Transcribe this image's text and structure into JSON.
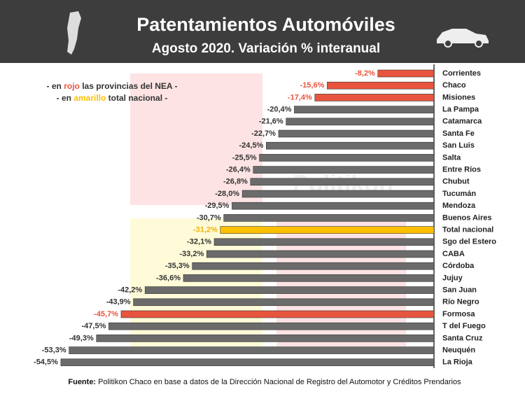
{
  "chart_data": {
    "type": "bar",
    "orientation": "horizontal",
    "title": "Patentamientos Automóviles",
    "subtitle": "Agosto 2020. Variación % interanual",
    "legend_lines": [
      [
        "- en ",
        "rojo",
        " las provincias del NEA -"
      ],
      [
        "- en ",
        "amarillo",
        " total nacional -"
      ]
    ],
    "legend_colors": [
      "#e8553e",
      "#ffc000"
    ],
    "watermark": "Politikon",
    "categories": [
      "Corrientes",
      "Chaco",
      "Misiones",
      "La Pampa",
      "Catamarca",
      "Santa Fe",
      "San Luis",
      "Salta",
      "Entre Ríos",
      "Chubut",
      "Tucumán",
      "Mendoza",
      "Buenos Aires",
      "Total nacional",
      "Sgo del Estero",
      "CABA",
      "Córdoba",
      "Jujuy",
      "San Juan",
      "Río Negro",
      "Formosa",
      "T del Fuego",
      "Santa Cruz",
      "Neuquén",
      "La Rioja"
    ],
    "values": [
      -8.2,
      -15.6,
      -17.4,
      -20.4,
      -21.6,
      -22.7,
      -24.5,
      -25.5,
      -26.4,
      -26.8,
      -28.0,
      -29.5,
      -30.7,
      -31.2,
      -32.1,
      -33.2,
      -35.3,
      -36.6,
      -42.2,
      -43.9,
      -45.7,
      -47.5,
      -49.3,
      -53.3,
      -54.5
    ],
    "value_labels": [
      "-8,2%",
      "-15,6%",
      "-17,4%",
      "-20,4%",
      "-21,6%",
      "-22,7%",
      "-24,5%",
      "-25,5%",
      "-26,4%",
      "-26,8%",
      "-28,0%",
      "-29,5%",
      "-30,7%",
      "-31,2%",
      "-32,1%",
      "-33,2%",
      "-35,3%",
      "-36,6%",
      "-42,2%",
      "-43,9%",
      "-45,7%",
      "-47,5%",
      "-49,3%",
      "-53,3%",
      "-54,5%"
    ],
    "colors": [
      "#e8553e",
      "#e8553e",
      "#e8553e",
      "#6b6b6b",
      "#6b6b6b",
      "#6b6b6b",
      "#6b6b6b",
      "#6b6b6b",
      "#6b6b6b",
      "#6b6b6b",
      "#6b6b6b",
      "#6b6b6b",
      "#6b6b6b",
      "#ffc000",
      "#6b6b6b",
      "#6b6b6b",
      "#6b6b6b",
      "#6b6b6b",
      "#6b6b6b",
      "#6b6b6b",
      "#e8553e",
      "#6b6b6b",
      "#6b6b6b",
      "#6b6b6b",
      "#6b6b6b"
    ],
    "label_colors": [
      "#e8553e",
      "#e8553e",
      "#e8553e",
      "#333333",
      "#333333",
      "#333333",
      "#333333",
      "#333333",
      "#333333",
      "#333333",
      "#333333",
      "#333333",
      "#333333",
      "#f0b400",
      "#333333",
      "#333333",
      "#333333",
      "#333333",
      "#333333",
      "#333333",
      "#e8553e",
      "#333333",
      "#333333",
      "#333333",
      "#333333"
    ],
    "xlim": [
      -55,
      0
    ],
    "source_label": "Fuente:",
    "source": "Politikon Chaco en base a datos de la Dirección Nacional de Registro del Automotor y Créditos Prendarios"
  }
}
